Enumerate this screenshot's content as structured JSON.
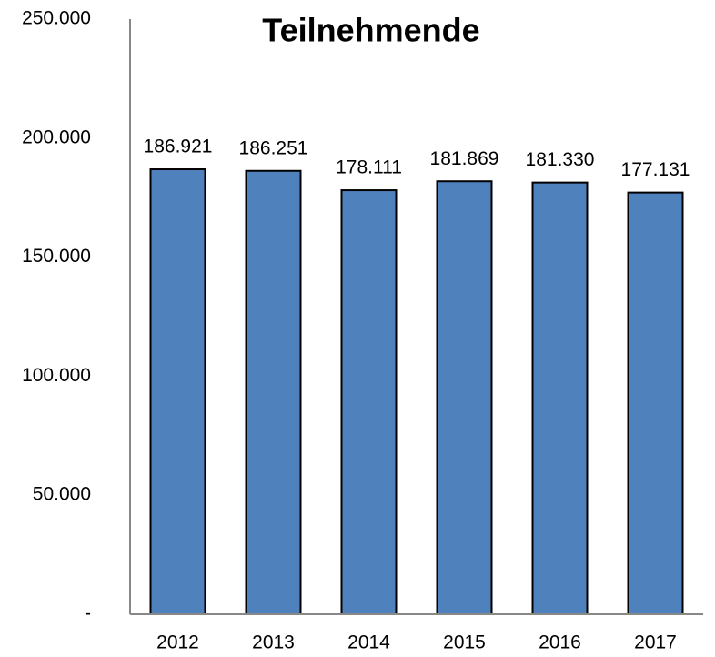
{
  "chart_data": {
    "type": "bar",
    "title": "Teilnehmende",
    "categories": [
      "2012",
      "2013",
      "2014",
      "2015",
      "2016",
      "2017"
    ],
    "values": [
      186921,
      186251,
      178111,
      181869,
      181330,
      177131
    ],
    "value_labels": [
      "186.921",
      "186.251",
      "178.111",
      "181.869",
      "181.330",
      "177.131"
    ],
    "color": "#4f81bd",
    "ylim": [
      0,
      250000
    ],
    "yticks": [
      {
        "value": 0,
        "label": "-"
      },
      {
        "value": 50000,
        "label": "50.000"
      },
      {
        "value": 100000,
        "label": "100.000"
      },
      {
        "value": 150000,
        "label": "150.000"
      },
      {
        "value": 200000,
        "label": "200.000"
      },
      {
        "value": 250000,
        "label": "250.000"
      }
    ],
    "grid": false
  }
}
